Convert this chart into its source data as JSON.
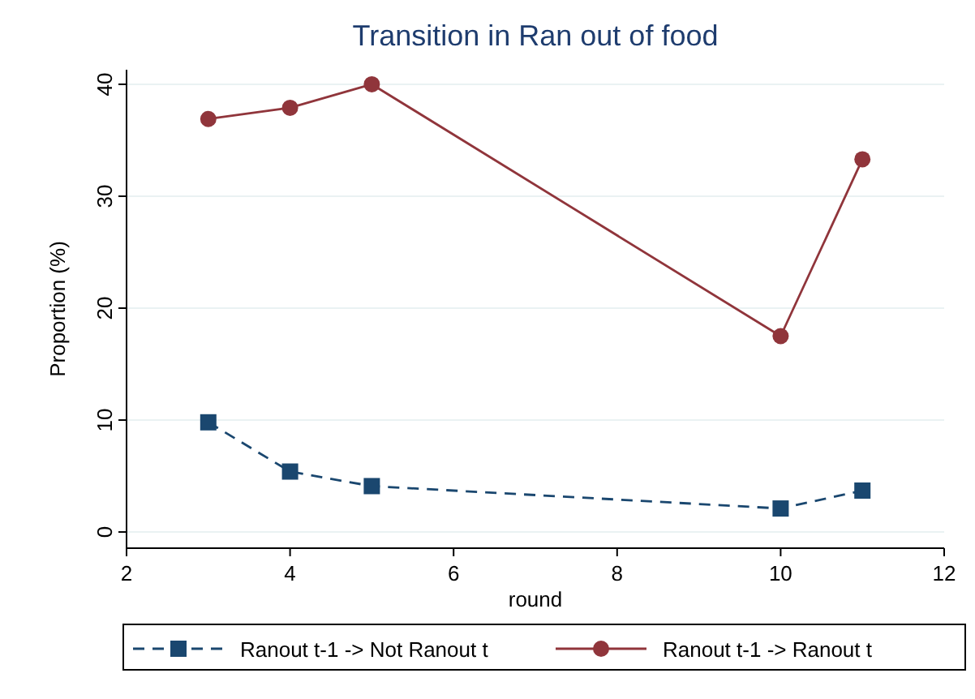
{
  "chart_data": {
    "type": "line",
    "title": "Transition in Ran out of food",
    "xlabel": "round",
    "ylabel": "Proportion (%)",
    "x": [
      3,
      4,
      5,
      10,
      11
    ],
    "series": [
      {
        "name": "Ranout t-1 -> Not Ranout t",
        "color": "#1a476f",
        "values": [
          9.8,
          5.4,
          4.1,
          2.1,
          3.7
        ],
        "marker": "square",
        "line_style": "dashed"
      },
      {
        "name": "Ranout t-1 -> Ranout t",
        "color": "#90353b",
        "values": [
          36.9,
          37.9,
          40,
          17.5,
          33.3
        ],
        "marker": "circle",
        "line_style": "solid"
      }
    ],
    "xlim": [
      2,
      12
    ],
    "xticks": [
      2,
      4,
      6,
      8,
      10,
      12
    ],
    "ylim": [
      -1.3,
      41.3
    ],
    "yticks": [
      0,
      10,
      20,
      30,
      40
    ],
    "grid": "y",
    "legend": "bottom"
  }
}
